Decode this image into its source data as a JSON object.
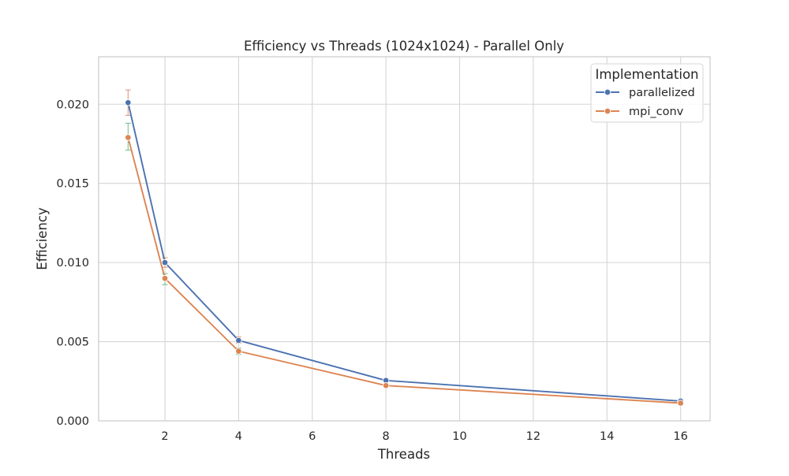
{
  "chart_data": {
    "type": "line",
    "title": "Efficiency vs Threads (1024x1024) - Parallel Only",
    "xlabel": "Threads",
    "ylabel": "Efficiency",
    "xlim": [
      0.2,
      16.8
    ],
    "ylim": [
      0.0,
      0.023
    ],
    "xticks": [
      2,
      4,
      6,
      8,
      10,
      12,
      14,
      16
    ],
    "yticks": [
      0.0,
      0.005,
      0.01,
      0.015,
      0.02
    ],
    "ytick_labels": [
      "0.000",
      "0.005",
      "0.010",
      "0.015",
      "0.020"
    ],
    "grid": true,
    "legend": {
      "title": "Implementation",
      "placement": "top-right"
    },
    "x": [
      1,
      2,
      4,
      8,
      16
    ],
    "series": [
      {
        "name": "parallelized",
        "color": "#4c72b0",
        "values": [
          0.0201,
          0.01,
          0.00508,
          0.00255,
          0.00125
        ],
        "error_low": [
          0.0193,
          0.0097,
          0.0049,
          0.00248,
          0.0012
        ],
        "error_high": [
          0.0209,
          0.0103,
          0.0053,
          0.00262,
          0.0013
        ],
        "error_color": "#e3a18a"
      },
      {
        "name": "mpi_conv",
        "color": "#dd8452",
        "values": [
          0.0179,
          0.009,
          0.0044,
          0.00223,
          0.00112
        ],
        "error_low": [
          0.0171,
          0.0086,
          0.0042,
          0.00215,
          0.00108
        ],
        "error_high": [
          0.0188,
          0.0093,
          0.0046,
          0.0023,
          0.00116
        ],
        "error_color": "#7fc99a"
      }
    ]
  }
}
